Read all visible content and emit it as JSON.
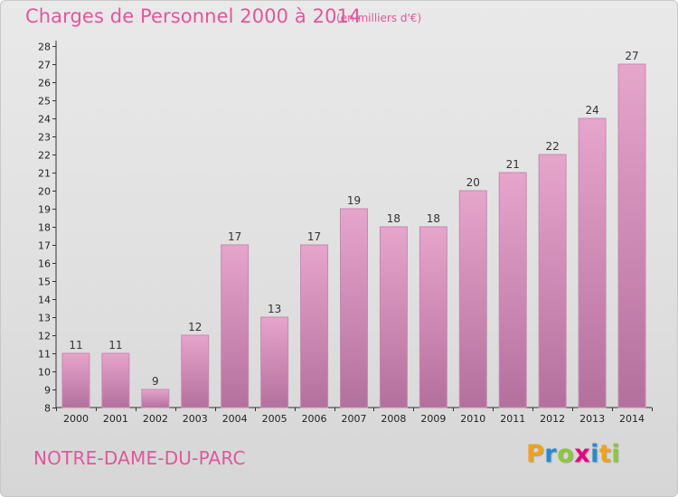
{
  "chart_data": {
    "type": "bar",
    "title": "Charges de Personnel 2000 à 2014",
    "subtitle": "(en milliers d'€)",
    "categories": [
      "2000",
      "2001",
      "2002",
      "2003",
      "2004",
      "2005",
      "2006",
      "2007",
      "2008",
      "2009",
      "2010",
      "2011",
      "2012",
      "2013",
      "2014"
    ],
    "values": [
      11,
      11,
      9,
      12,
      17,
      13,
      17,
      19,
      18,
      18,
      20,
      21,
      22,
      24,
      27
    ],
    "ylim": [
      8,
      28
    ],
    "yticks": [
      8,
      9,
      10,
      11,
      12,
      13,
      14,
      15,
      16,
      17,
      18,
      19,
      20,
      21,
      22,
      23,
      24,
      25,
      26,
      27,
      28
    ],
    "grid": false,
    "colors": {
      "bar_top": "#e6a5cb",
      "bar_bottom": "#b4709d",
      "bar_edge": "#c987b1",
      "text": "#e0579c"
    }
  },
  "footer": {
    "commune": "NOTRE-DAME-DU-PARC",
    "logo_letters": [
      "P",
      "r",
      "o",
      "x",
      "i",
      "t",
      "i"
    ],
    "logo_colors": [
      "#f0a21c",
      "#2a89d1",
      "#8dc63f",
      "#e5007e",
      "#2a89d1",
      "#f0a21c",
      "#8dc63f"
    ]
  }
}
